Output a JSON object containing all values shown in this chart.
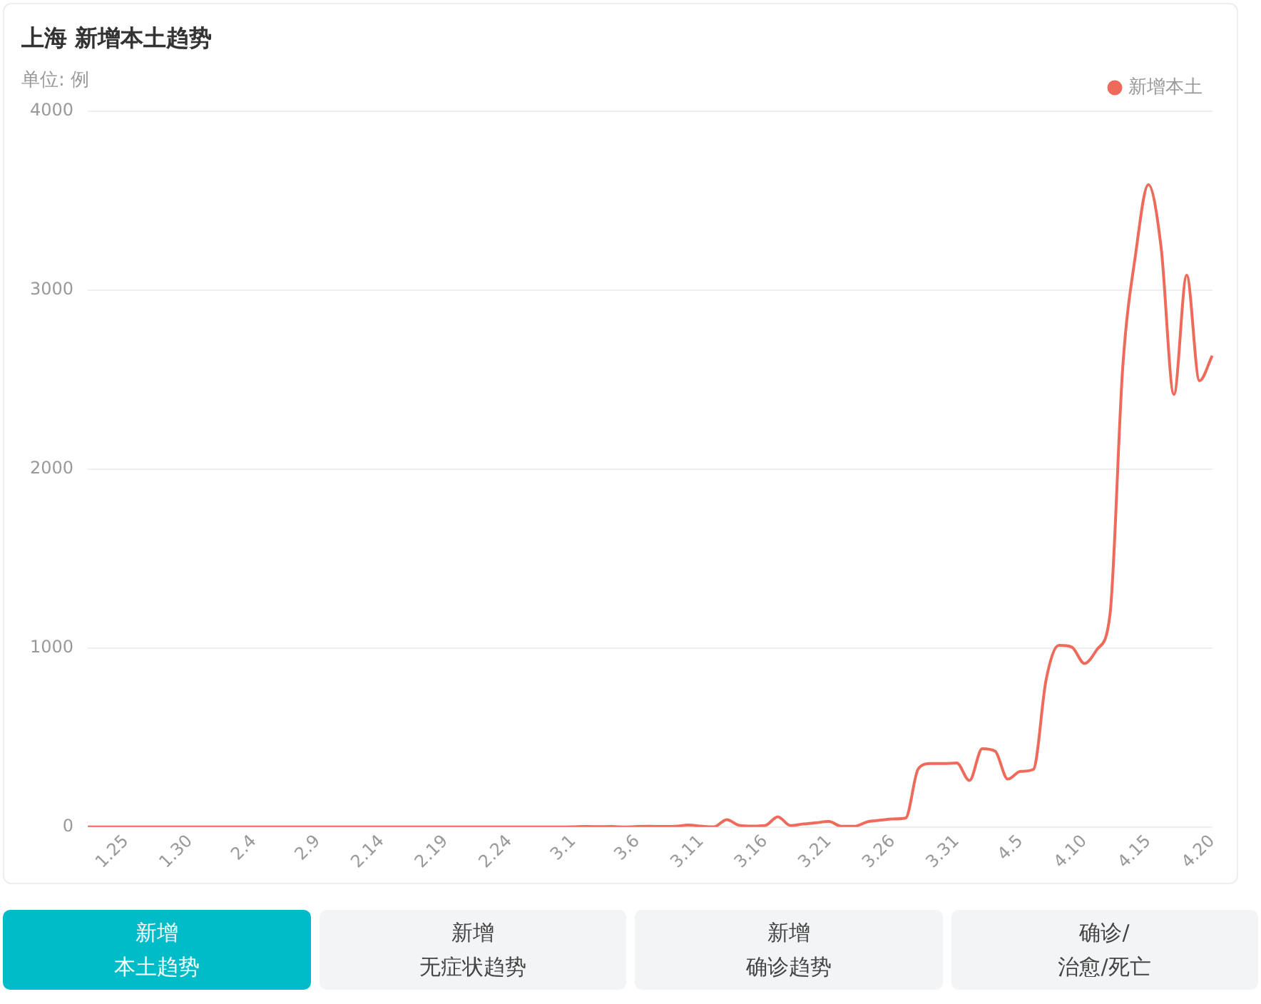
{
  "chart_data": {
    "type": "line",
    "title": "上海 新增本土趋势",
    "subtitle": "单位: 例",
    "categories": [
      null,
      null,
      null,
      "1.25",
      null,
      null,
      null,
      null,
      "1.30",
      null,
      null,
      null,
      null,
      "2.4",
      null,
      null,
      null,
      null,
      "2.9",
      null,
      null,
      null,
      null,
      "2.14",
      null,
      null,
      null,
      null,
      "2.19",
      null,
      null,
      null,
      null,
      "2.24",
      null,
      null,
      null,
      null,
      "3.1",
      null,
      null,
      null,
      null,
      "3.6",
      null,
      null,
      null,
      null,
      "3.11",
      null,
      null,
      null,
      null,
      "3.16",
      null,
      null,
      null,
      null,
      "3.21",
      null,
      null,
      null,
      null,
      "3.26",
      null,
      null,
      null,
      null,
      "3.31",
      null,
      null,
      null,
      null,
      "4.5",
      null,
      null,
      null,
      null,
      "4.10",
      null,
      null,
      null,
      null,
      "4.15",
      null,
      null,
      null,
      null,
      "4.20"
    ],
    "series": [
      {
        "name": "新增本土",
        "color": "#ee6a5a",
        "values": [
          0,
          0,
          0,
          0,
          0,
          0,
          0,
          0,
          0,
          0,
          0,
          0,
          0,
          0,
          0,
          0,
          0,
          0,
          0,
          0,
          0,
          0,
          0,
          0,
          0,
          0,
          0,
          0,
          0,
          0,
          0,
          0,
          0,
          0,
          0,
          0,
          0,
          0,
          1,
          3,
          2,
          3,
          0,
          3,
          4,
          3,
          4,
          11,
          5,
          1,
          41,
          9,
          5,
          8,
          57,
          8,
          17,
          24,
          31,
          4,
          4,
          29,
          38,
          45,
          50,
          326,
          355,
          355,
          358,
          260,
          438,
          425,
          268,
          311,
          322,
          824,
          1015,
          1006,
          914,
          994,
          1189,
          2573,
          3200,
          3590,
          3238,
          2417,
          3084,
          2494,
          2634
        ]
      }
    ],
    "ylim": [
      0,
      4000
    ],
    "yticks": [
      0,
      1000,
      2000,
      3000,
      4000
    ],
    "grid": "y",
    "legend": "top right",
    "marker": "none",
    "line_style": "solid",
    "annotations": [
      "新增",
      "本土趋势",
      "新增",
      "无症状趋势",
      "新增",
      "确诊趋势",
      "确诊/",
      "治愈/死亡"
    ]
  }
}
